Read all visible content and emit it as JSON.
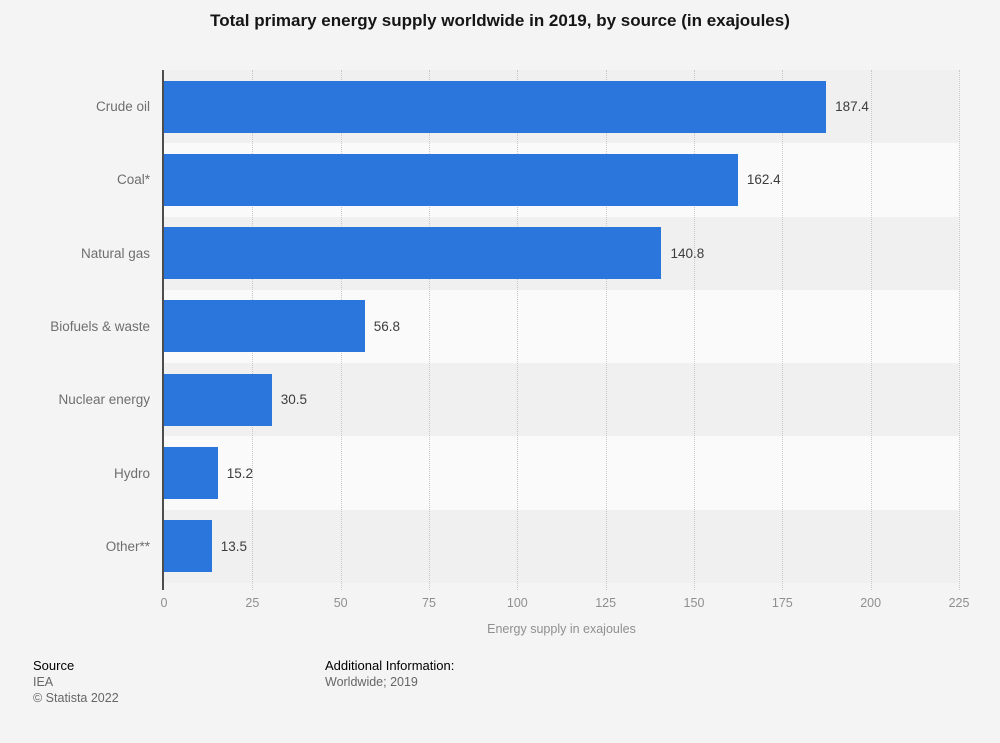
{
  "title": "Total primary energy supply worldwide in 2019, by source (in exajoules)",
  "chart_data": {
    "type": "bar",
    "orientation": "horizontal",
    "categories": [
      "Crude oil",
      "Coal*",
      "Natural gas",
      "Biofuels & waste",
      "Nuclear energy",
      "Hydro",
      "Other**"
    ],
    "values": [
      187.4,
      162.4,
      140.8,
      56.8,
      30.5,
      15.2,
      13.5
    ],
    "value_labels": [
      "187.4",
      "162.4",
      "140.8",
      "56.8",
      "30.5",
      "15.2",
      "13.5"
    ],
    "title": "Total primary energy supply worldwide in 2019, by source (in exajoules)",
    "xlabel": "Energy supply in exajoules",
    "ylabel": "",
    "xlim": [
      0,
      225
    ],
    "xticks": [
      0,
      25,
      50,
      75,
      100,
      125,
      150,
      175,
      200,
      225
    ],
    "grid": "vertical-dotted",
    "legend": "none",
    "bar_color": "#2a76dd"
  },
  "footer": {
    "source_label": "Source",
    "source_value": "IEA",
    "copyright": "© Statista 2022",
    "additional_label": "Additional Information:",
    "additional_value": "Worldwide; 2019"
  }
}
